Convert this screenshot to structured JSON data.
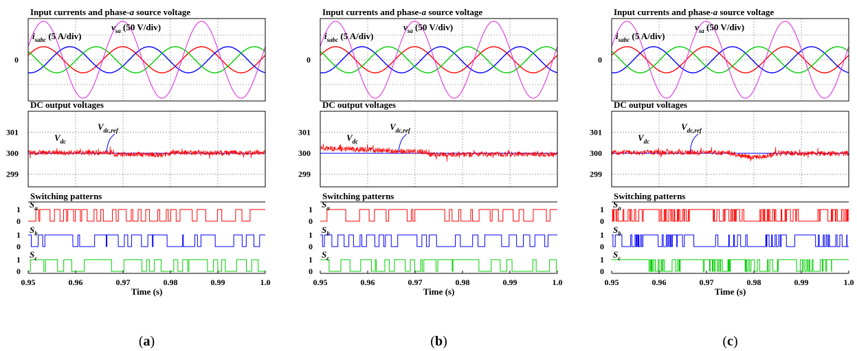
{
  "figure": {
    "panel_titles": {
      "currents": "Input currents and phase-a source voltage",
      "dc": "DC output voltages",
      "switching": "Switching patterns"
    },
    "current_annotation": {
      "main": "i",
      "sub": "sabc",
      "rest": " (5 A/div)"
    },
    "voltage_annotation": {
      "main": "v",
      "sub": "sa",
      "rest": " (50 V/div)"
    },
    "vdc_label": {
      "main": "V",
      "sub": "dc"
    },
    "vref_label": {
      "main": "V",
      "sub": "dc,ref"
    },
    "zero_label": "0",
    "switch_labels": [
      {
        "main": "S",
        "sub": "a"
      },
      {
        "main": "S",
        "sub": "b"
      },
      {
        "main": "S",
        "sub": "c"
      }
    ],
    "switch_level_labels": [
      "1",
      "0"
    ],
    "xlabel": "Time (s)",
    "x_tick_labels": [
      "0.95",
      "0.96",
      "0.97",
      "0.98",
      "0.99",
      "1.0"
    ],
    "dc_tick_labels": [
      "301",
      "300",
      "299"
    ],
    "subfig_labels": [
      {
        "open": "(",
        "letter": "a",
        "close": ")"
      },
      {
        "open": "(",
        "letter": "b",
        "close": ")"
      },
      {
        "open": "(",
        "letter": "c",
        "close": ")"
      }
    ]
  },
  "chart_data": [
    {
      "type": "line",
      "title": "Input currents and phase-a source voltage",
      "x": [
        0.95,
        1.0
      ],
      "xlabel": "Time (s)",
      "series": [
        {
          "name": "i_sabc (5 A/div)",
          "kind": "three-phase current",
          "color": "#ff0000"
        },
        {
          "name": "v_sa (50 V/div)",
          "kind": "source voltage",
          "color": "#e033e0"
        }
      ],
      "frequency_hz": 60,
      "colors": {
        "phase_a": "#ff0000",
        "phase_b": "#0000ff",
        "phase_c": "#00cc00",
        "voltage": "#e033e0"
      },
      "dc": {
        "title": "DC output voltages",
        "ylim": [
          298.4,
          302
        ],
        "yticks": [
          299,
          300,
          301
        ],
        "reference": 300,
        "deviation_profile": "a"
      },
      "switching": {
        "title": "Switching patterns",
        "pattern": "dense"
      }
    },
    {
      "type": "line",
      "title": "Input currents and phase-a source voltage",
      "x": [
        0.95,
        1.0
      ],
      "xlabel": "Time (s)",
      "series": [
        {
          "name": "i_sabc (5 A/div)",
          "kind": "three-phase current",
          "color": "#ff0000"
        },
        {
          "name": "v_sa (50 V/div)",
          "kind": "source voltage",
          "color": "#e033e0"
        }
      ],
      "frequency_hz": 60,
      "colors": {
        "phase_a": "#ff0000",
        "phase_b": "#0000ff",
        "phase_c": "#00cc00",
        "voltage": "#e033e0"
      },
      "dc": {
        "title": "DC output voltages",
        "ylim": [
          298.4,
          302
        ],
        "yticks": [
          299,
          300,
          301
        ],
        "reference": 300,
        "deviation_profile": "b"
      },
      "switching": {
        "title": "Switching patterns",
        "pattern": "dense"
      }
    },
    {
      "type": "line",
      "title": "Input currents and phase-a source voltage",
      "x": [
        0.95,
        1.0
      ],
      "xlabel": "Time (s)",
      "series": [
        {
          "name": "i_sabc (5 A/div)",
          "kind": "three-phase current",
          "color": "#ff0000"
        },
        {
          "name": "v_sa (50 V/div)",
          "kind": "source voltage",
          "color": "#e033e0"
        }
      ],
      "frequency_hz": 60,
      "colors": {
        "phase_a": "#ff0000",
        "phase_b": "#0000ff",
        "phase_c": "#00cc00",
        "voltage": "#e033e0"
      },
      "dc": {
        "title": "DC output voltages",
        "ylim": [
          298.4,
          302
        ],
        "yticks": [
          299,
          300,
          301
        ],
        "reference": 300,
        "deviation_profile": "c"
      },
      "switching": {
        "title": "Switching patterns",
        "pattern": "burst"
      }
    }
  ]
}
